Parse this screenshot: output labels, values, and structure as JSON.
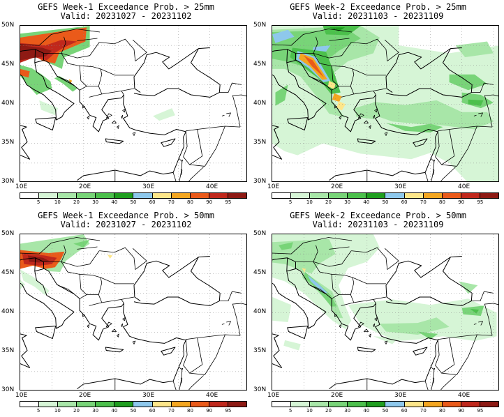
{
  "panels": [
    {
      "title1": "GEFS Week-1 Exceedance Prob. > 25mm",
      "title2": "Valid: 20231027 - 20231102"
    },
    {
      "title1": "GEFS Week-2 Exceedance Prob. > 25mm",
      "title2": "Valid: 20231103 - 20231109"
    },
    {
      "title1": "GEFS Week-1 Exceedance Prob. > 50mm",
      "title2": "Valid: 20231027 - 20231102"
    },
    {
      "title1": "GEFS Week-2 Exceedance Prob. > 50mm",
      "title2": "Valid: 20231103 - 20231109"
    }
  ],
  "lat_labels": [
    "50N",
    "45N",
    "40N",
    "35N",
    "30N"
  ],
  "lon_labels": [
    "10E",
    "20E",
    "30E",
    "40E"
  ],
  "colorbar": {
    "labels": [
      "5",
      "10",
      "20",
      "30",
      "40",
      "50",
      "60",
      "70",
      "80",
      "90",
      "95"
    ],
    "colors": [
      "#ffffff",
      "#d6f5d6",
      "#a8e6a8",
      "#78d478",
      "#4cc04c",
      "#1f9e1f",
      "#8ec8ec",
      "#fde68a",
      "#f4a620",
      "#ea5a1a",
      "#c0281c",
      "#8e1a14"
    ]
  },
  "map_extent": {
    "lon": [
      10,
      46
    ],
    "lat": [
      30,
      50
    ]
  }
}
